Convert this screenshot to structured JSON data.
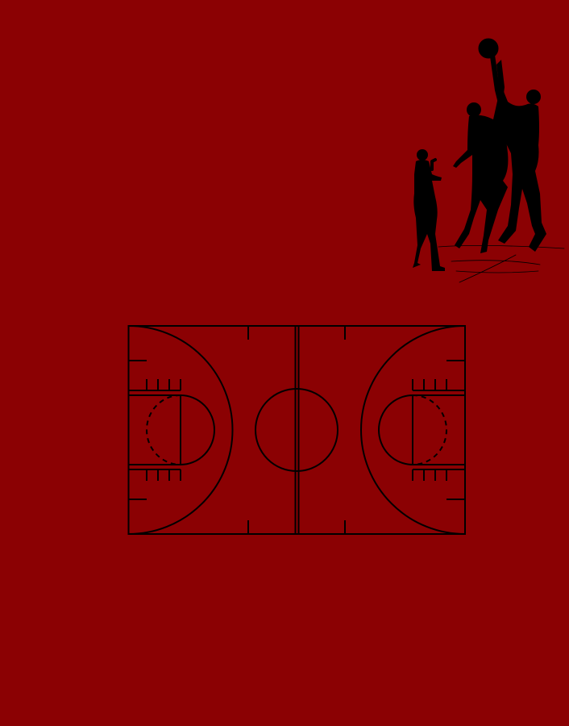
{
  "artwork": {
    "background_color": "#8b0103",
    "ink_color": "#000000",
    "illustration_icon": "basketball-players-silhouette-icon",
    "court_icon": "basketball-court-diagram-icon",
    "player_count": 3
  }
}
